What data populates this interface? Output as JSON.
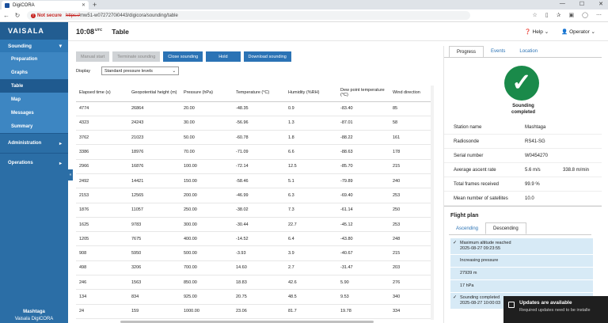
{
  "browser": {
    "tab_title": "DigiCORA",
    "url_scheme": "https://",
    "url_rest": "mw51-w0727270i0443/digicora/sounding/table",
    "not_secure": "Not secure"
  },
  "sidebar": {
    "logo": "VAISALA",
    "groups": [
      {
        "label": "Sounding",
        "items": [
          "Preparation",
          "Graphs",
          "Table",
          "Map",
          "Messages",
          "Summary"
        ]
      },
      {
        "label": "Administration"
      },
      {
        "label": "Operations"
      }
    ],
    "footer_station": "Mashtaga",
    "footer_product": "Vaisala DigiCORA"
  },
  "header": {
    "time": "10:08",
    "utc": "UTC",
    "title": "Table",
    "help": "Help",
    "user": "Operator"
  },
  "toolbar": {
    "manual_start": "Manual start",
    "terminate": "Terminate sounding",
    "close": "Close sounding",
    "hold": "Hold",
    "download": "Download sounding"
  },
  "display": {
    "label": "Display",
    "selected": "Standard pressure levels"
  },
  "table": {
    "headers": [
      "Elapsed time (s)",
      "Geopotential height (m)",
      "Pressure (hPa)",
      "Temperature (°C)",
      "Humidity (%RH)",
      "Dew point temperature (°C)",
      "Wind direction"
    ],
    "rows": [
      [
        "4774",
        "26864",
        "20.00",
        "-48.35",
        "0.9",
        "-83.40",
        "85"
      ],
      [
        "4323",
        "24243",
        "30.00",
        "-56.96",
        "1.3",
        "-87.01",
        "58"
      ],
      [
        "3762",
        "21023",
        "50.00",
        "-60.78",
        "1.8",
        "-88.22",
        "161"
      ],
      [
        "3386",
        "18976",
        "70.00",
        "-71.09",
        "6.6",
        "-88.63",
        "178"
      ],
      [
        "2966",
        "16876",
        "100.00",
        "-72.14",
        "12.5",
        "-85.70",
        "215"
      ],
      [
        "2492",
        "14421",
        "150.00",
        "-58.46",
        "5.1",
        "-79.89",
        "240"
      ],
      [
        "2153",
        "12565",
        "200.00",
        "-46.99",
        "6.3",
        "-69.40",
        "253"
      ],
      [
        "1876",
        "11057",
        "250.00",
        "-38.02",
        "7.3",
        "-61.14",
        "250"
      ],
      [
        "1625",
        "9783",
        "300.00",
        "-30.44",
        "22.7",
        "-45.12",
        "253"
      ],
      [
        "1205",
        "7675",
        "400.00",
        "-14.52",
        "6.4",
        "-43.80",
        "248"
      ],
      [
        "908",
        "5950",
        "500.00",
        "-3.93",
        "3.9",
        "-40.67",
        "215"
      ],
      [
        "498",
        "3206",
        "700.00",
        "14.60",
        "2.7",
        "-31.47",
        "203"
      ],
      [
        "246",
        "1563",
        "850.00",
        "18.83",
        "42.6",
        "5.90",
        "276"
      ],
      [
        "134",
        "834",
        "925.00",
        "20.75",
        "48.5",
        "9.53",
        "340"
      ],
      [
        "24",
        "159",
        "1000.00",
        "23.06",
        "81.7",
        "19.78",
        "334"
      ]
    ]
  },
  "right_panel": {
    "tabs": [
      "Progress",
      "Events",
      "Location"
    ],
    "status_line1": "Sounding",
    "status_line2": "completed",
    "info": [
      {
        "label": "Station name",
        "value": "Mashtaga",
        "extra": ""
      },
      {
        "label": "Radiosonde",
        "value": "RS41-SG",
        "extra": ""
      },
      {
        "label": "Serial number",
        "value": "W0454270",
        "extra": ""
      },
      {
        "label": "Average ascent rate",
        "value": "5.6 m/s",
        "extra": "338.8 m/min"
      },
      {
        "label": "Total frames received",
        "value": "99.9 %",
        "extra": ""
      },
      {
        "label": "Mean number of satellites",
        "value": "10.0",
        "extra": ""
      }
    ],
    "flight_plan": {
      "title": "Flight plan",
      "tabs": [
        "Ascending",
        "Descending"
      ],
      "max_alt_title": "Maximum altitude reached",
      "max_alt_time": "2025-08-27 09:23:55",
      "increasing": "Increasing pressure",
      "altitude": "27939 m",
      "pressure": "17 hPa",
      "completed_title": "Sounding completed",
      "completed_time": "2025-08-27 10:00:03"
    }
  },
  "toast": {
    "title": "Updates are available",
    "body": "Required updates need to be installe"
  }
}
